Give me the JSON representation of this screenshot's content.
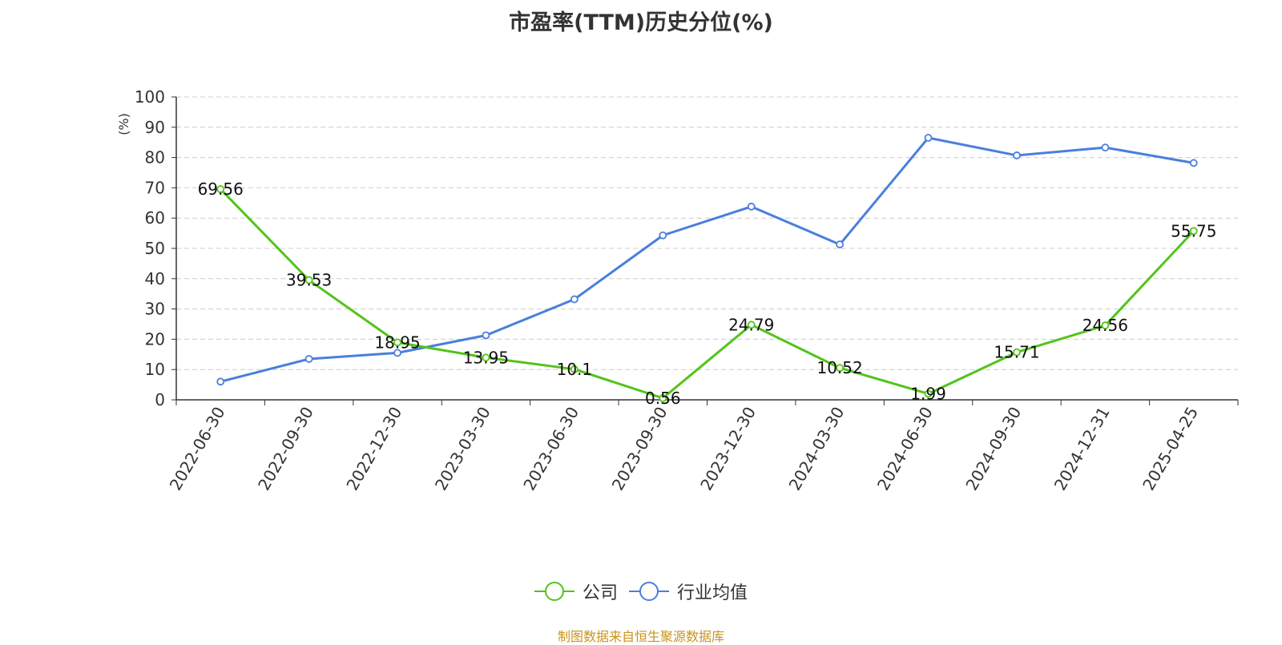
{
  "title": "市盈率(TTM)历史分位(%)",
  "source_note": "制图数据来自恒生聚源数据库",
  "colors": {
    "company": "#52c41a",
    "industry": "#4a7fdc",
    "ylabel": "#ff0000",
    "source": "#c8941e",
    "grid": "#cccccc",
    "axis": "#333333"
  },
  "chart_data": {
    "type": "line",
    "title": "市盈率(TTM)历史分位(%)",
    "ylabel": "(%)",
    "xlabel": "",
    "ylim": [
      0,
      100
    ],
    "yticks": [
      0,
      10,
      20,
      30,
      40,
      50,
      60,
      70,
      80,
      90,
      100
    ],
    "grid": true,
    "legend_position": "bottom",
    "categories": [
      "2022-06-30",
      "2022-09-30",
      "2022-12-30",
      "2023-03-30",
      "2023-06-30",
      "2023-09-30",
      "2023-12-30",
      "2024-03-30",
      "2024-06-30",
      "2024-09-30",
      "2024-12-31",
      "2025-04-25"
    ],
    "series": [
      {
        "name": "公司",
        "values": [
          69.56,
          39.53,
          18.95,
          13.95,
          10.1,
          0.56,
          24.79,
          10.52,
          1.99,
          15.71,
          24.56,
          55.75
        ],
        "labels": [
          "69.56",
          "39.53",
          "18.95",
          "13.95",
          "10.1",
          "0.56",
          "24.79",
          "10.52",
          "1.99",
          "15.71",
          "24.56",
          "55.75"
        ]
      },
      {
        "name": "行业均值",
        "values": [
          6.0,
          13.5,
          15.5,
          21.3,
          33.2,
          54.3,
          63.8,
          51.3,
          86.5,
          80.7,
          83.3,
          78.2
        ]
      }
    ]
  }
}
